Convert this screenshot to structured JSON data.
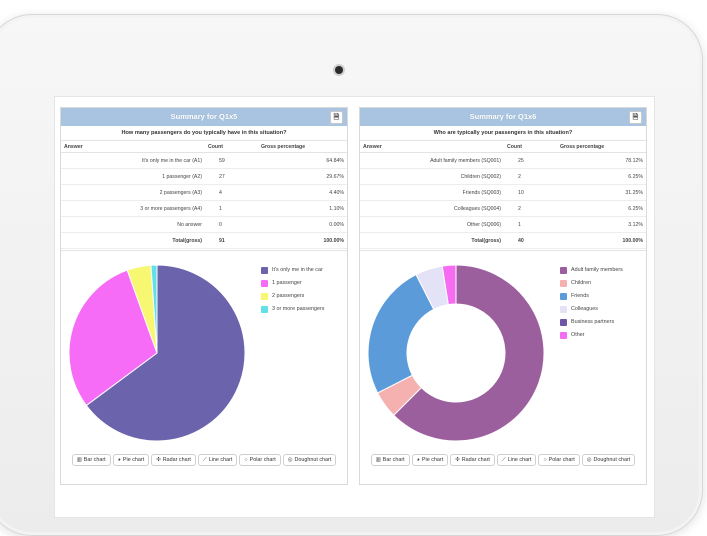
{
  "left": {
    "title": "Summary for Q1x5",
    "question": "How many passengers do you typically have in this situation?",
    "columns": [
      "Answer",
      "Count",
      "Gross percentage"
    ],
    "rows": [
      {
        "answer": "It's only me in the car (A1)",
        "count": "59",
        "pct": "64.84%"
      },
      {
        "answer": "1 passenger (A2)",
        "count": "27",
        "pct": "29.67%"
      },
      {
        "answer": "2 passengers (A3)",
        "count": "4",
        "pct": "4.40%"
      },
      {
        "answer": "3 or more passengers (A4)",
        "count": "1",
        "pct": "1.10%"
      },
      {
        "answer": "No answer",
        "count": "0",
        "pct": "0.00%"
      },
      {
        "answer": "Total(gross)",
        "count": "91",
        "pct": "100.00%"
      }
    ],
    "legend": [
      "It's only me in the car",
      "1 passenger",
      "2 passengers",
      "3 or more passengers"
    ],
    "colors": [
      "#6b63ac",
      "#f76cf7",
      "#f7f771",
      "#62e0e8"
    ]
  },
  "right": {
    "title": "Summary for Q1x6",
    "question": "Who are typically your passengers in this situation?",
    "columns": [
      "Answer",
      "Count",
      "Gross percentage"
    ],
    "rows": [
      {
        "answer": "Adult family members (SQ001)",
        "count": "25",
        "pct": "78.12%"
      },
      {
        "answer": "Children (SQ002)",
        "count": "2",
        "pct": "6.25%"
      },
      {
        "answer": "Friends (SQ003)",
        "count": "10",
        "pct": "31.25%"
      },
      {
        "answer": "Colleagues (SQ004)",
        "count": "2",
        "pct": "6.25%"
      },
      {
        "answer": "Other (SQ006)",
        "count": "1",
        "pct": "3.12%"
      },
      {
        "answer": "Total(gross)",
        "count": "40",
        "pct": "100.00%"
      }
    ],
    "legend": [
      "Adult family members",
      "Children",
      "Friends",
      "Colleagues",
      "Business partners",
      "Other"
    ],
    "colors": [
      "#9c5f9e",
      "#f5b0b0",
      "#5b9bd9",
      "#e3e2f6",
      "#6f55a6",
      "#f56cf3"
    ]
  },
  "chart_buttons": [
    "Bar chart",
    "Pie chart",
    "Radar chart",
    "Line chart",
    "Polar chart",
    "Doughnut chart"
  ],
  "chart_data": [
    {
      "type": "pie",
      "categories": [
        "It's only me in the car",
        "1 passenger",
        "2 passengers",
        "3 or more passengers"
      ],
      "values": [
        59,
        27,
        4,
        1
      ]
    },
    {
      "type": "pie",
      "donut": true,
      "categories": [
        "Adult family members",
        "Children",
        "Friends",
        "Colleagues",
        "Business partners",
        "Other"
      ],
      "values": [
        25,
        2,
        10,
        2,
        0,
        1
      ]
    }
  ]
}
